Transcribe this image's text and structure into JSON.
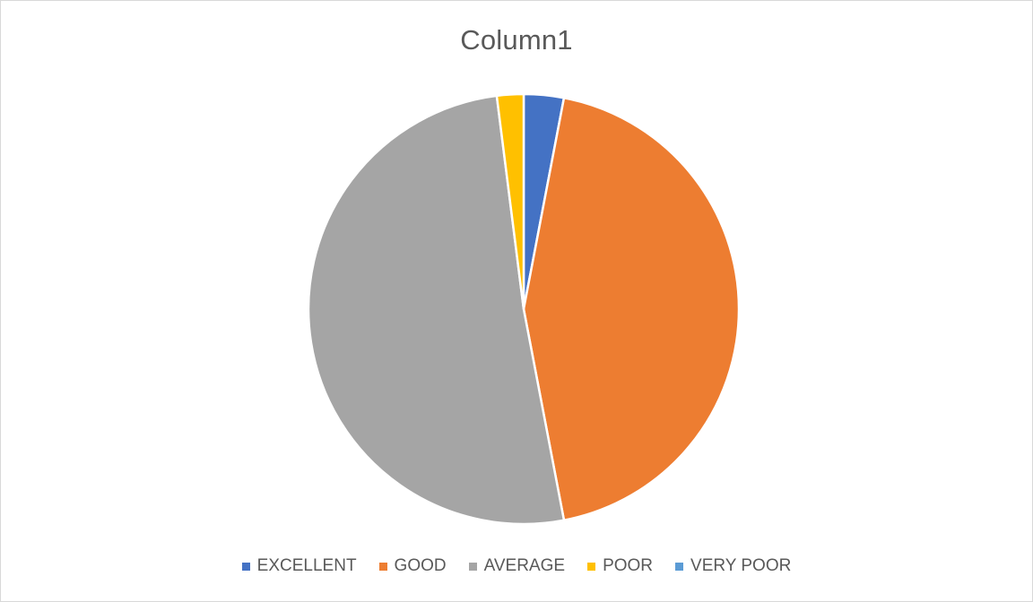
{
  "chart_data": {
    "type": "pie",
    "title": "Column1",
    "legend_position": "bottom",
    "series": [
      {
        "values": [
          3,
          44,
          51,
          2,
          0
        ]
      }
    ],
    "categories": [
      "EXCELLENT",
      "GOOD",
      "AVERAGE",
      "POOR",
      "VERY POOR"
    ],
    "colors": [
      "#4472c4",
      "#ed7d31",
      "#a5a5a5",
      "#ffc000",
      "#5b9bd5"
    ]
  }
}
